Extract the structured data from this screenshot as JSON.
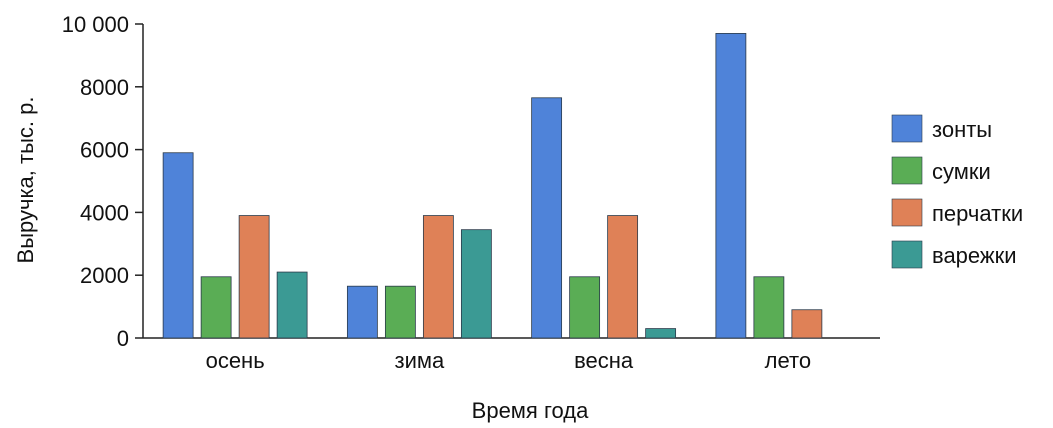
{
  "chart_data": {
    "type": "bar",
    "title": "",
    "xlabel": "Время года",
    "ylabel": "Выручка, тыс. р.",
    "ylim": [
      0,
      10000
    ],
    "yticks": [
      0,
      2000,
      4000,
      6000,
      8000,
      10000
    ],
    "ytick_labels": [
      "0",
      "2000",
      "4000",
      "6000",
      "8000",
      "10 000"
    ],
    "categories": [
      "осень",
      "зима",
      "весна",
      "лето"
    ],
    "series": [
      {
        "name": "зонты",
        "color": "#4f83d9",
        "values": [
          5900,
          1650,
          7650,
          9700
        ]
      },
      {
        "name": "сумки",
        "color": "#5aad55",
        "values": [
          1950,
          1650,
          1950,
          1950
        ]
      },
      {
        "name": "перчатки",
        "color": "#df8157",
        "values": [
          3900,
          3900,
          3900,
          900
        ]
      },
      {
        "name": "варежки",
        "color": "#3b9a94",
        "values": [
          2100,
          3450,
          300,
          0
        ]
      }
    ],
    "legend_position": "right",
    "grid": false
  }
}
